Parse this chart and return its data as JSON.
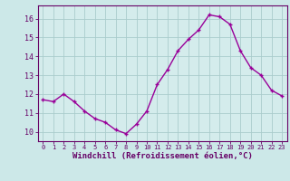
{
  "x": [
    0,
    1,
    2,
    3,
    4,
    5,
    6,
    7,
    8,
    9,
    10,
    11,
    12,
    13,
    14,
    15,
    16,
    17,
    18,
    19,
    20,
    21,
    22,
    23
  ],
  "y": [
    11.7,
    11.6,
    12.0,
    11.6,
    11.1,
    10.7,
    10.5,
    10.1,
    9.9,
    10.4,
    11.1,
    12.5,
    13.3,
    14.3,
    14.9,
    15.4,
    16.2,
    16.1,
    15.7,
    14.3,
    13.4,
    13.0,
    12.2,
    11.9
  ],
  "line_color": "#990099",
  "marker": "+",
  "markersize": 3.5,
  "linewidth": 1.0,
  "xlabel": "Windchill (Refroidissement éolien,°C)",
  "xlabel_fontsize": 6.5,
  "background_color": "#cce8e8",
  "plot_bg_color": "#d4ecec",
  "grid_color": "#aacccc",
  "ylim": [
    9.5,
    16.7
  ],
  "xlim": [
    -0.5,
    23.5
  ],
  "yticks": [
    10,
    11,
    12,
    13,
    14,
    15,
    16
  ],
  "xticks": [
    0,
    1,
    2,
    3,
    4,
    5,
    6,
    7,
    8,
    9,
    10,
    11,
    12,
    13,
    14,
    15,
    16,
    17,
    18,
    19,
    20,
    21,
    22,
    23
  ],
  "tick_fontsize": 6.0,
  "xtick_fontsize": 5.0,
  "tick_color": "#660066",
  "spine_color": "#660066"
}
